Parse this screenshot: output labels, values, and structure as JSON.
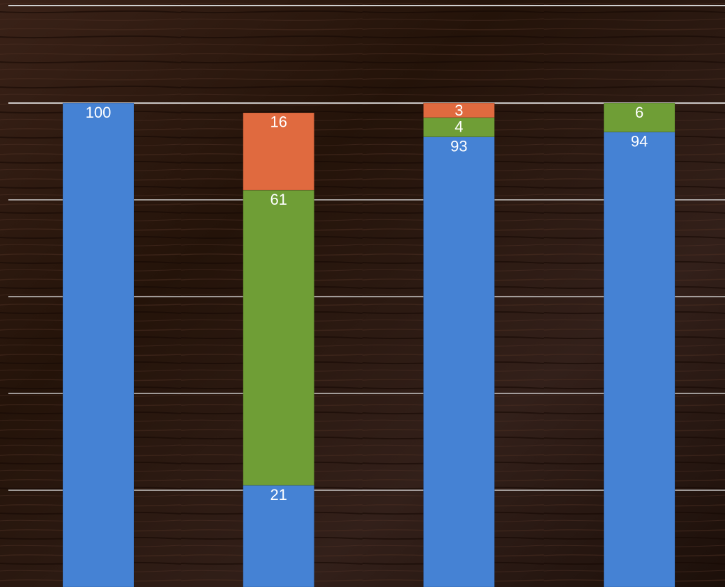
{
  "chart_data": {
    "type": "bar",
    "stacked": true,
    "categories": [
      "",
      "",
      "",
      ""
    ],
    "series": [
      {
        "color": "#4582d4",
        "values": [
          100,
          21,
          93,
          94
        ]
      },
      {
        "color": "#6f9e36",
        "values": [
          0,
          61,
          4,
          6
        ]
      },
      {
        "color": "#e06a3f",
        "values": [
          0,
          16,
          3,
          0
        ]
      }
    ],
    "data_labels": [
      [
        "100",
        "21",
        "93",
        "94"
      ],
      [
        "",
        "61",
        "4",
        "6"
      ],
      [
        "",
        "16",
        "3",
        ""
      ]
    ],
    "ylim": [
      0,
      100
    ],
    "grid": true,
    "legend": "none",
    "background": "dark wood texture"
  }
}
